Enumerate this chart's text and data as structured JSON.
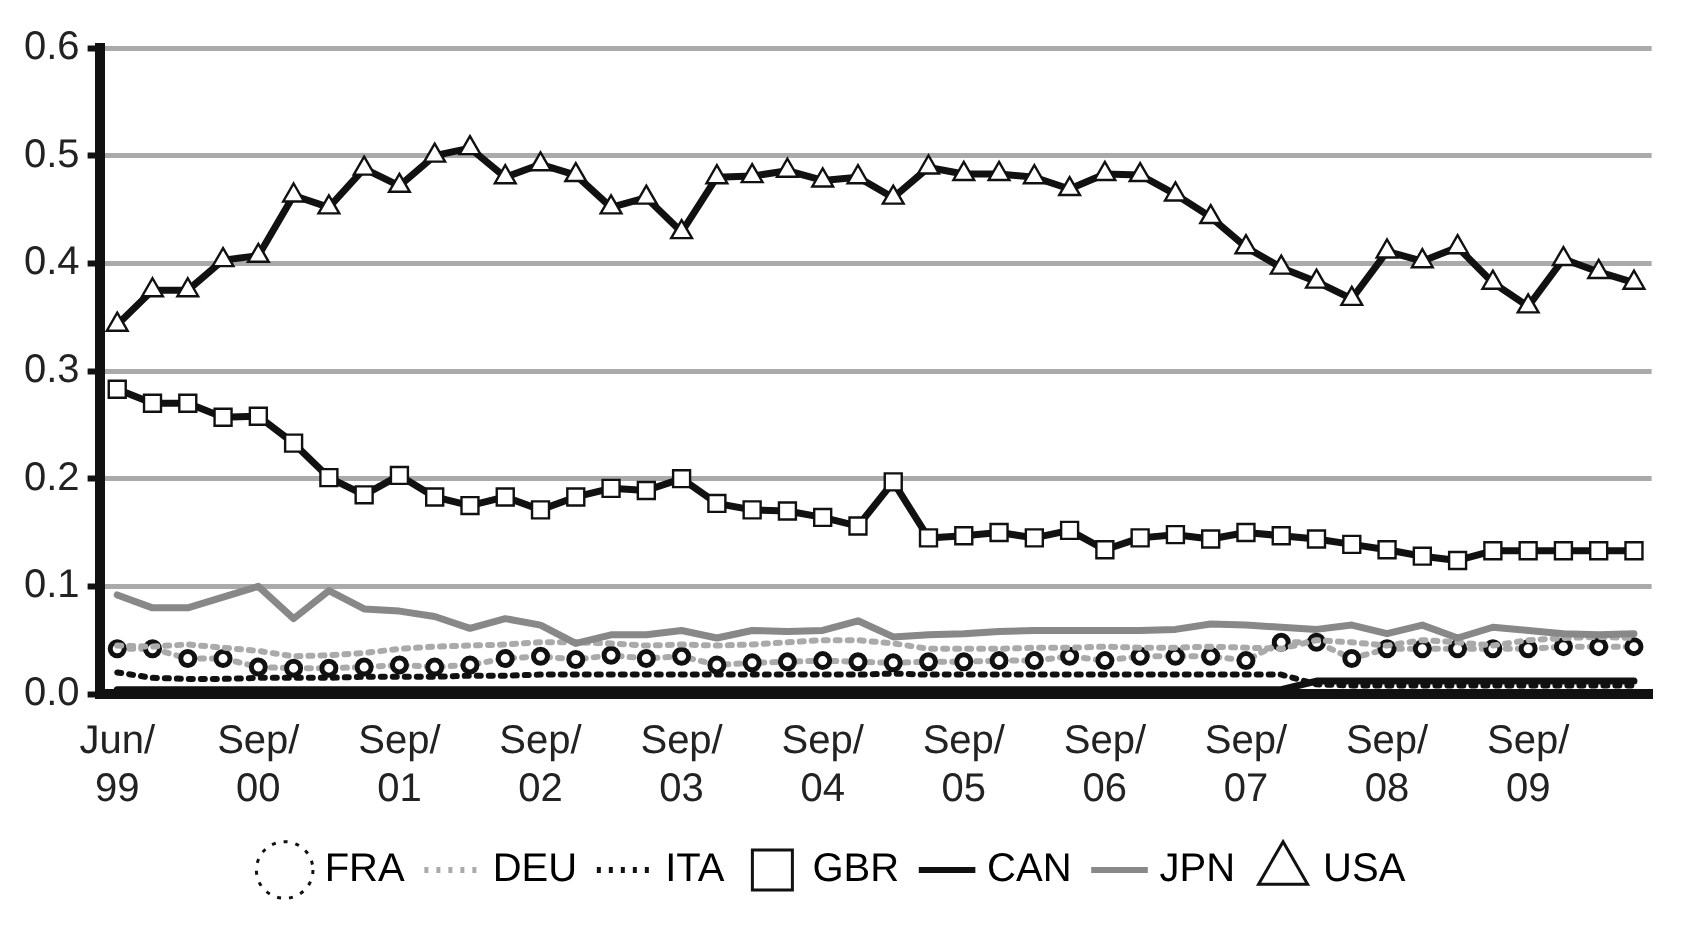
{
  "chart_data": {
    "type": "line",
    "categories": [
      "Jun/99",
      null,
      null,
      null,
      "Sep/00",
      null,
      null,
      null,
      "Sep/01",
      null,
      null,
      null,
      "Sep/02",
      null,
      null,
      null,
      "Sep/03",
      null,
      null,
      null,
      "Sep/04",
      null,
      null,
      null,
      "Sep/05",
      null,
      null,
      null,
      "Sep/06",
      null,
      null,
      null,
      "Sep/07",
      null,
      null,
      null,
      "Sep/08",
      null,
      null,
      null,
      "Sep/09",
      null,
      null,
      null
    ],
    "series": [
      {
        "name": "FRA",
        "color": "#aaaaaa",
        "marker": "circle",
        "line_style": "dotted",
        "values": [
          0.042,
          0.042,
          0.033,
          0.033,
          0.025,
          0.024,
          0.024,
          0.025,
          0.027,
          0.025,
          0.027,
          0.033,
          0.035,
          0.032,
          0.036,
          0.033,
          0.035,
          0.027,
          0.029,
          0.03,
          0.031,
          0.03,
          0.029,
          0.03,
          0.03,
          0.031,
          0.031,
          0.035,
          0.031,
          0.035,
          0.035,
          0.035,
          0.031,
          0.048,
          0.048,
          0.033,
          0.042,
          0.042,
          0.042,
          0.042,
          0.042,
          0.044,
          0.044,
          0.044
        ]
      },
      {
        "name": "DEU",
        "color": "#aaaaaa",
        "marker": "none",
        "line_style": "dotted",
        "values": [
          0.045,
          0.044,
          0.046,
          0.043,
          0.04,
          0.035,
          0.036,
          0.038,
          0.042,
          0.044,
          0.045,
          0.046,
          0.048,
          0.048,
          0.047,
          0.045,
          0.046,
          0.045,
          0.046,
          0.048,
          0.05,
          0.05,
          0.047,
          0.042,
          0.042,
          0.042,
          0.043,
          0.043,
          0.044,
          0.043,
          0.043,
          0.044,
          0.043,
          0.042,
          0.05,
          0.048,
          0.045,
          0.05,
          0.048,
          0.045,
          0.05,
          0.052,
          0.053,
          0.052
        ]
      },
      {
        "name": "ITA",
        "color": "#111111",
        "marker": "none",
        "line_style": "dotted",
        "values": [
          0.02,
          0.015,
          0.014,
          0.014,
          0.015,
          0.015,
          0.015,
          0.016,
          0.016,
          0.016,
          0.017,
          0.017,
          0.018,
          0.018,
          0.018,
          0.018,
          0.018,
          0.018,
          0.018,
          0.018,
          0.018,
          0.018,
          0.019,
          0.018,
          0.018,
          0.018,
          0.018,
          0.018,
          0.018,
          0.018,
          0.018,
          0.018,
          0.018,
          0.018,
          0.009,
          0.008,
          0.008,
          0.008,
          0.008,
          0.008,
          0.008,
          0.008,
          0.008,
          0.008
        ]
      },
      {
        "name": "GBR",
        "color": "#111111",
        "marker": "square",
        "line_style": "solid",
        "values": [
          0.283,
          0.27,
          0.27,
          0.257,
          0.258,
          0.233,
          0.201,
          0.185,
          0.203,
          0.183,
          0.175,
          0.183,
          0.171,
          0.183,
          0.191,
          0.189,
          0.2,
          0.177,
          0.171,
          0.17,
          0.164,
          0.156,
          0.197,
          0.145,
          0.147,
          0.15,
          0.145,
          0.152,
          0.134,
          0.145,
          0.148,
          0.144,
          0.15,
          0.147,
          0.144,
          0.139,
          0.134,
          0.128,
          0.124,
          0.133,
          0.133,
          0.133,
          0.133,
          0.133
        ]
      },
      {
        "name": "CAN",
        "color": "#111111",
        "marker": "none",
        "line_style": "solid",
        "values": [
          0.004,
          0.004,
          0.004,
          0.004,
          0.004,
          0.004,
          0.004,
          0.004,
          0.004,
          0.004,
          0.004,
          0.004,
          0.004,
          0.004,
          0.004,
          0.004,
          0.004,
          0.004,
          0.004,
          0.004,
          0.004,
          0.004,
          0.004,
          0.004,
          0.004,
          0.004,
          0.004,
          0.004,
          0.004,
          0.004,
          0.004,
          0.004,
          0.004,
          0.004,
          0.012,
          0.012,
          0.012,
          0.012,
          0.012,
          0.012,
          0.012,
          0.012,
          0.012,
          0.012
        ]
      },
      {
        "name": "JPN",
        "color": "#888888",
        "marker": "none",
        "line_style": "solid",
        "values": [
          0.092,
          0.08,
          0.08,
          0.09,
          0.1,
          0.07,
          0.096,
          0.079,
          0.077,
          0.072,
          0.061,
          0.07,
          0.064,
          0.047,
          0.055,
          0.055,
          0.059,
          0.052,
          0.059,
          0.058,
          0.059,
          0.068,
          0.053,
          0.055,
          0.056,
          0.058,
          0.059,
          0.059,
          0.059,
          0.059,
          0.06,
          0.065,
          0.064,
          0.062,
          0.06,
          0.064,
          0.056,
          0.064,
          0.052,
          0.062,
          0.059,
          0.056,
          0.055,
          0.056
        ]
      },
      {
        "name": "USA",
        "color": "#111111",
        "marker": "triangle",
        "line_style": "solid",
        "values": [
          0.343,
          0.375,
          0.375,
          0.403,
          0.407,
          0.463,
          0.452,
          0.488,
          0.472,
          0.5,
          0.507,
          0.48,
          0.492,
          0.482,
          0.452,
          0.461,
          0.429,
          0.48,
          0.481,
          0.486,
          0.477,
          0.48,
          0.461,
          0.489,
          0.483,
          0.483,
          0.48,
          0.469,
          0.483,
          0.482,
          0.464,
          0.443,
          0.415,
          0.396,
          0.383,
          0.367,
          0.411,
          0.402,
          0.415,
          0.382,
          0.36,
          0.404,
          0.392,
          0.382
        ]
      }
    ],
    "ylim": [
      0,
      0.6
    ],
    "yticks": [
      {
        "value": 0,
        "label": "0.0"
      },
      0.1,
      0.2,
      0.3,
      0.4,
      0.5,
      0.6
    ],
    "grid": "y",
    "legend": "bottom"
  }
}
